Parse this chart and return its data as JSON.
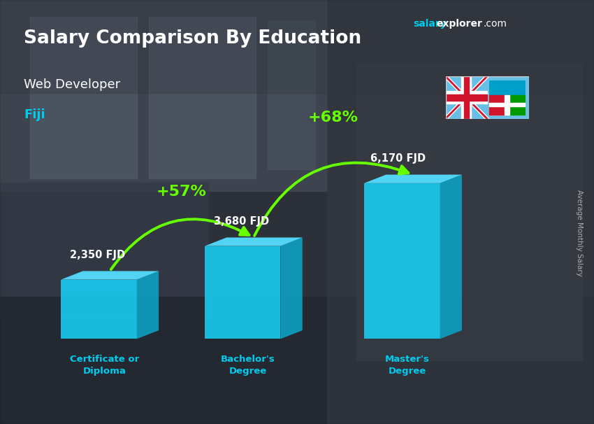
{
  "title": "Salary Comparison By Education",
  "subtitle": "Web Developer",
  "location": "Fiji",
  "categories": [
    "Certificate or\nDiploma",
    "Bachelor's\nDegree",
    "Master's\nDegree"
  ],
  "values": [
    2350,
    3680,
    6170
  ],
  "labels": [
    "2,350 FJD",
    "3,680 FJD",
    "6,170 FJD"
  ],
  "pct_labels": [
    "+57%",
    "+68%"
  ],
  "bar_color_front": "#1ac8ed",
  "bar_color_top": "#55ddff",
  "bar_color_side": "#0e9ec0",
  "ylabel": "Average Monthly Salary",
  "website_part1": "salary",
  "website_part2": "explorer",
  "website_part3": ".com",
  "title_color": "#ffffff",
  "subtitle_color": "#ffffff",
  "location_color": "#00ccee",
  "label_color": "#ffffff",
  "pct_color": "#66ff00",
  "arrow_color": "#66ff00",
  "cat_label_color": "#00ccee",
  "ylabel_color": "#aaaaaa",
  "bg_color": "#4a5060",
  "figsize": [
    8.5,
    6.06
  ],
  "dpi": 100
}
